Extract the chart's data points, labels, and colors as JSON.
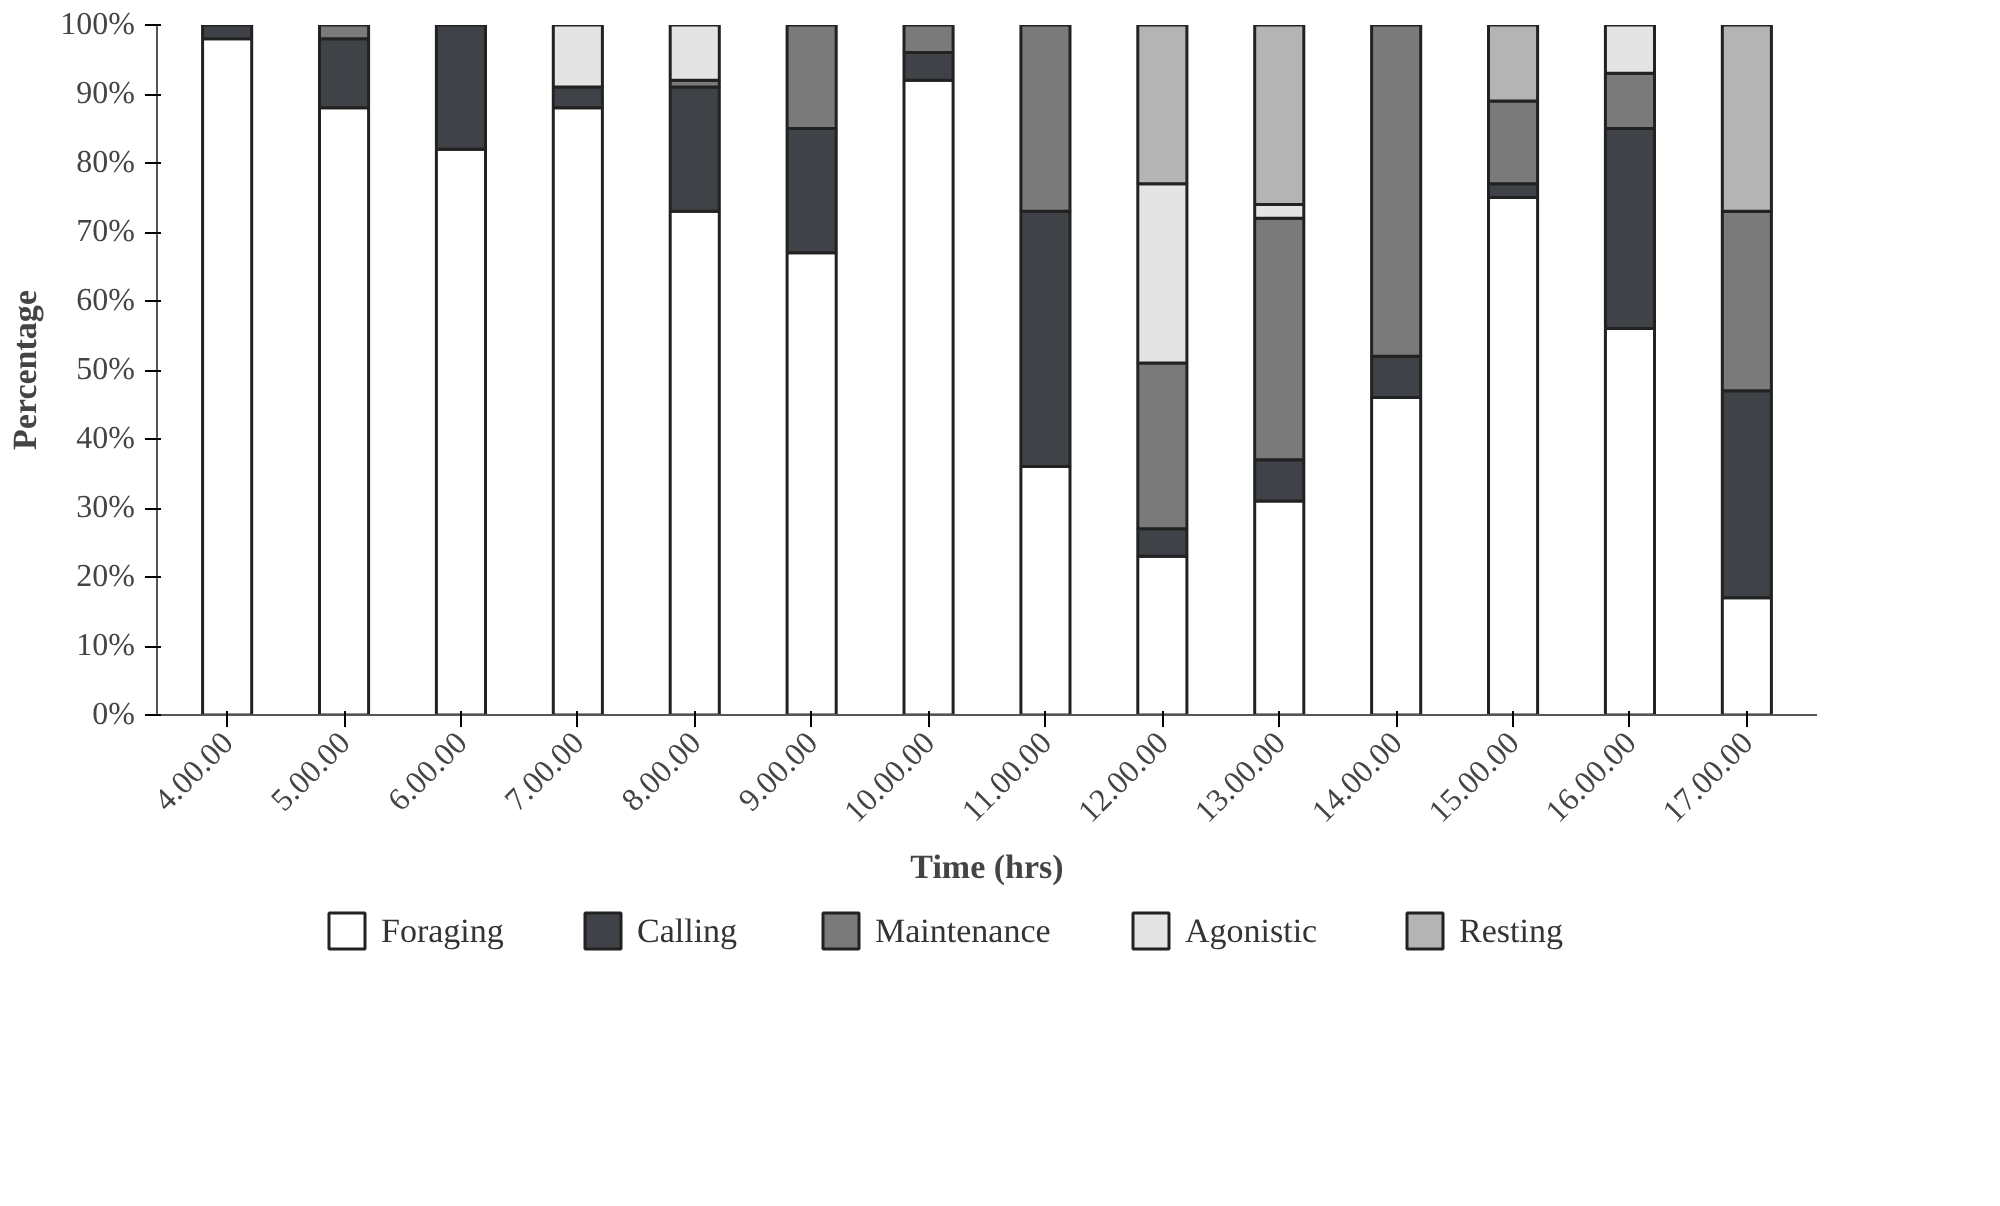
{
  "chart_data": {
    "type": "bar",
    "stacked": true,
    "xlabel": "Time (hrs)",
    "ylabel": "Percentage",
    "categories": [
      "4.00.00",
      "5.00.00",
      "6.00.00",
      "7.00.00",
      "8.00.00",
      "9.00.00",
      "10.00.00",
      "11.00.00",
      "12.00.00",
      "13.00.00",
      "14.00.00",
      "15.00.00",
      "16.00.00",
      "17.00.00"
    ],
    "series": [
      {
        "name": "Foraging",
        "color": "#ffffff",
        "values": [
          98,
          88,
          82,
          88,
          73,
          67,
          92,
          36,
          23,
          31,
          46,
          75,
          56,
          17
        ]
      },
      {
        "name": "Calling",
        "color": "#3f4246",
        "values": [
          2,
          10,
          18,
          3,
          18,
          18,
          4,
          37,
          4,
          6,
          6,
          2,
          29,
          30
        ]
      },
      {
        "name": "Maintenance",
        "color": "#7a7a7a",
        "values": [
          0,
          2,
          0,
          0,
          1,
          15,
          4,
          27,
          24,
          35,
          48,
          12,
          8,
          26
        ]
      },
      {
        "name": "Agonistic",
        "color": "#e4e4e4",
        "values": [
          0,
          0,
          0,
          9,
          8,
          0,
          0,
          0,
          26,
          2,
          0,
          0,
          7,
          0
        ]
      },
      {
        "name": "Resting",
        "color": "#b4b4b4",
        "values": [
          0,
          0,
          0,
          0,
          0,
          0,
          0,
          0,
          23,
          26,
          0,
          11,
          0,
          27
        ]
      }
    ],
    "ylim": [
      0,
      100
    ],
    "yticks": [
      {
        "value": 0,
        "label": "0%"
      },
      {
        "value": 10,
        "label": "10%"
      },
      {
        "value": 20,
        "label": "20%"
      },
      {
        "value": 30,
        "label": "30%"
      },
      {
        "value": 40,
        "label": "40%"
      },
      {
        "value": 50,
        "label": "50%"
      },
      {
        "value": 60,
        "label": "60%"
      },
      {
        "value": 70,
        "label": "70%"
      },
      {
        "value": 80,
        "label": "80%"
      },
      {
        "value": 90,
        "label": "90%"
      },
      {
        "value": 100,
        "label": "100%"
      }
    ],
    "grid": false,
    "legend": "bottom"
  }
}
